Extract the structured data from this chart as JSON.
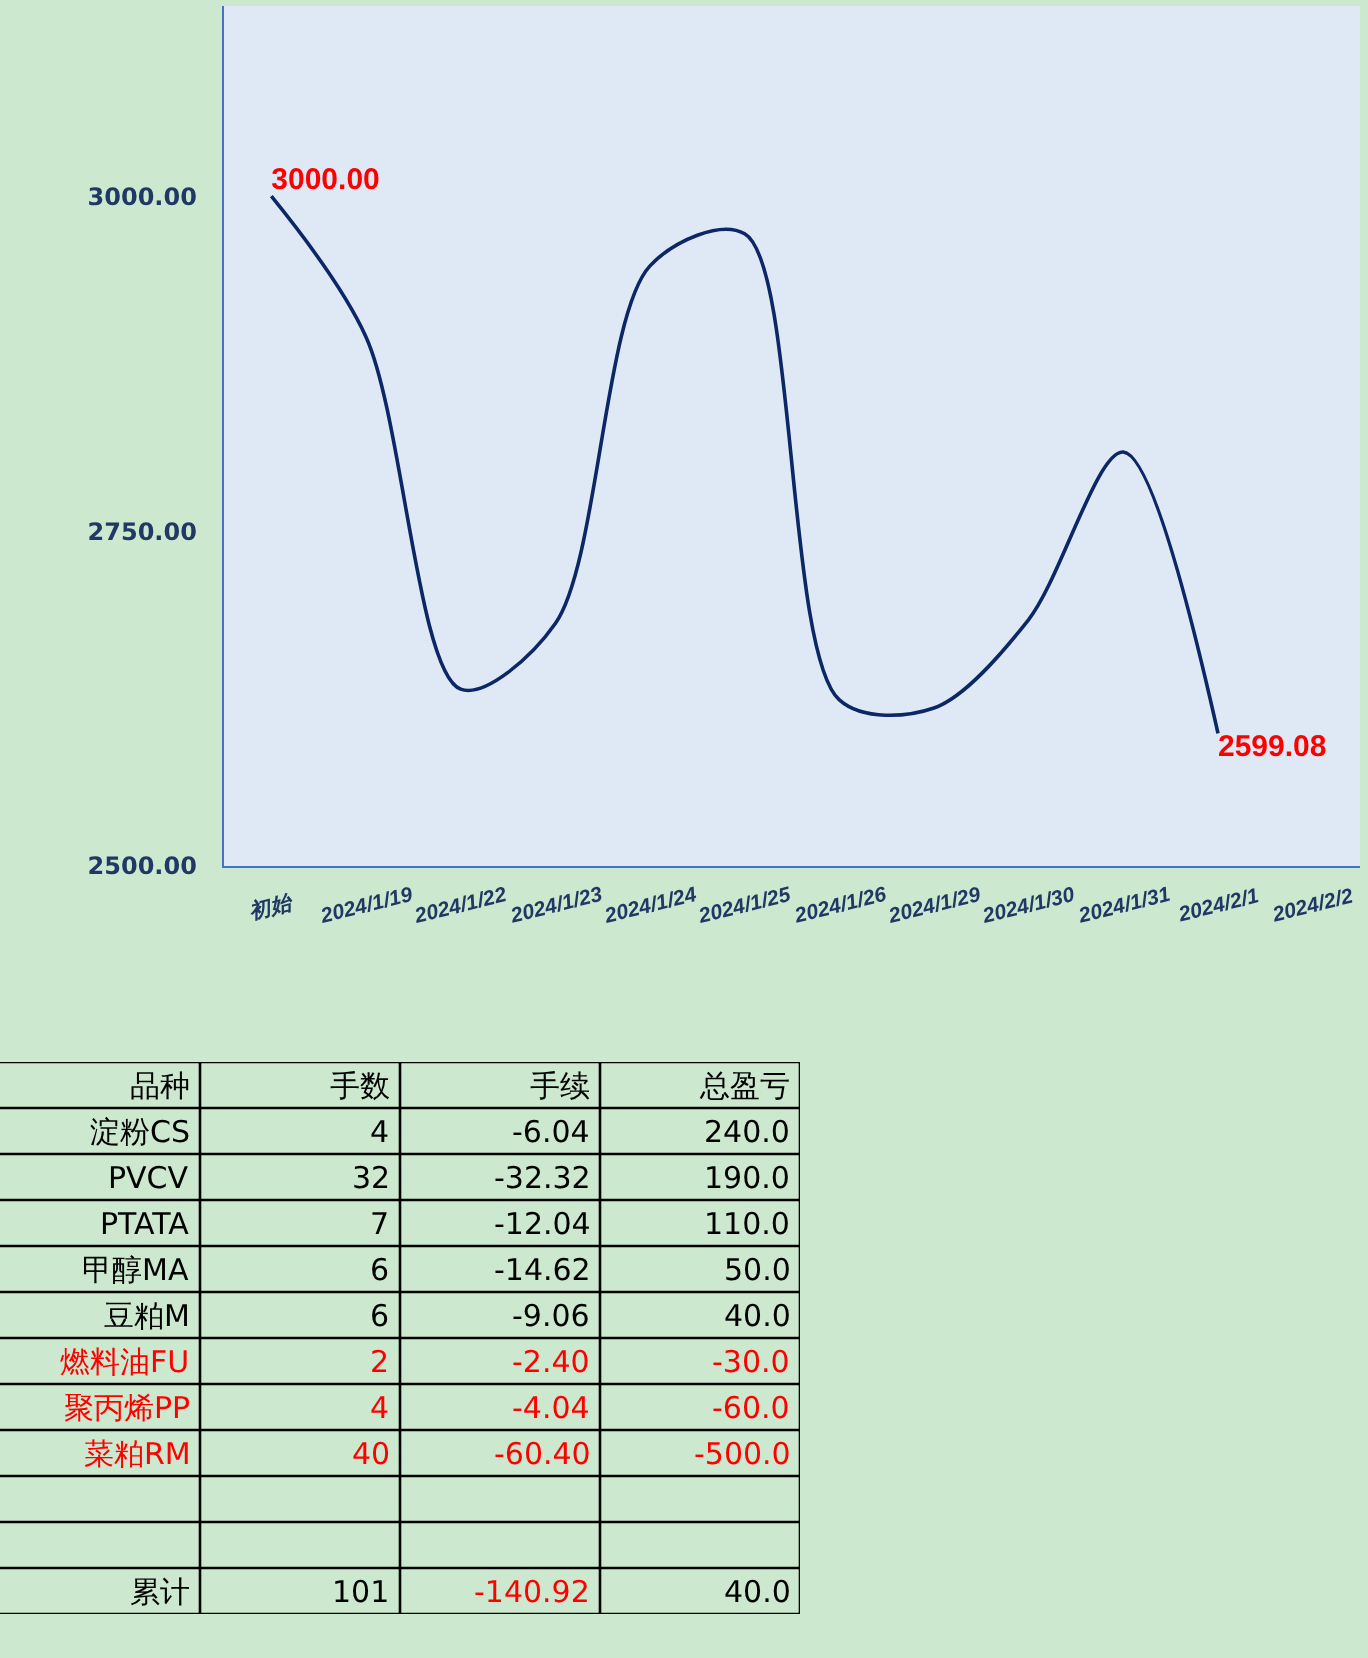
{
  "chart_data": [
    {
      "type": "line",
      "categories": [
        "初始",
        "2024/1/19",
        "2024/1/22",
        "2024/1/23",
        "2024/1/24",
        "2024/1/25",
        "2024/1/26",
        "2024/1/29",
        "2024/1/30",
        "2024/1/31",
        "2024/2/1",
        "2024/2/2"
      ],
      "series": [
        {
          "color": "#0c2766",
          "values": [
            3000,
            2895,
            2632,
            2681,
            2948,
            2972,
            2624,
            2618,
            2684,
            2809,
            2599.08,
            null
          ],
          "value_labels": [
            "3000.00",
            null,
            null,
            null,
            null,
            null,
            null,
            null,
            null,
            null,
            "2599.08",
            null
          ]
        }
      ],
      "ylim": [
        2500,
        3142
      ],
      "yticks": [
        {
          "value": 2500,
          "label": "2500.00"
        },
        {
          "value": 2750,
          "label": "2750.00"
        },
        {
          "value": 3000,
          "label": "3000.00"
        }
      ]
    },
    {
      "type": "other",
      "ylabel": "品种",
      "data_labels": true,
      "categories": [
        "淀粉CS",
        "PVCV",
        "PTATA",
        "甲醇MA",
        "豆粕M",
        "燃料油FU",
        "聚丙烯PP",
        "菜粕RM",
        null,
        null,
        "累计"
      ],
      "colors": [
        "#000000",
        "#000000",
        "#000000",
        "#000000",
        "#000000",
        "#ff0000",
        "#ff0000",
        "#ff0000",
        "#000000",
        "#000000",
        "#000000"
      ],
      "series": [
        {
          "name": "手数",
          "values": [
            4,
            32,
            7,
            6,
            6,
            2,
            4,
            40,
            null,
            null,
            101
          ],
          "colors": [
            "#000000",
            "#000000",
            "#000000",
            "#000000",
            "#000000",
            "#ff0000",
            "#ff0000",
            "#ff0000",
            "#000000",
            "#000000",
            "#000000"
          ]
        },
        {
          "name": "手续",
          "values": [
            -6.04,
            -32.32,
            -12.04,
            -14.62,
            -9.06,
            -2.4,
            -4.04,
            -60.4,
            null,
            null,
            -140.92
          ],
          "value_labels": [
            "-6.04",
            "-32.32",
            "-12.04",
            "-14.62",
            "-9.06",
            "-2.40",
            "-4.04",
            "-60.40",
            null,
            null,
            "-140.92"
          ],
          "colors": [
            "#000000",
            "#000000",
            "#000000",
            "#000000",
            "#000000",
            "#ff0000",
            "#ff0000",
            "#ff0000",
            "#000000",
            "#000000",
            "#ff0000"
          ]
        },
        {
          "name": "总盈亏",
          "values": [
            240,
            190,
            110,
            50,
            40,
            -30,
            -60,
            -500,
            null,
            null,
            40
          ],
          "value_labels": [
            "240.0",
            "190.0",
            "110.0",
            "50.0",
            "40.0",
            "-30.0",
            "-60.0",
            "-500.0",
            null,
            null,
            "40.0"
          ],
          "colors": [
            "#000000",
            "#000000",
            "#000000",
            "#000000",
            "#000000",
            "#ff0000",
            "#ff0000",
            "#ff0000",
            "#000000",
            "#000000",
            "#000000"
          ]
        }
      ]
    }
  ]
}
